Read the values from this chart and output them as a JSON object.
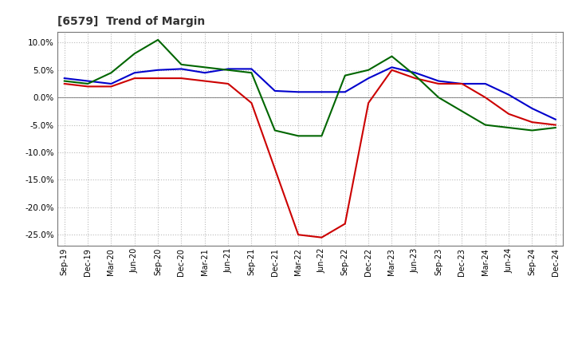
{
  "title": "[6579]  Trend of Margin",
  "x_labels": [
    "Sep-19",
    "Dec-19",
    "Mar-20",
    "Jun-20",
    "Sep-20",
    "Dec-20",
    "Mar-21",
    "Jun-21",
    "Sep-21",
    "Dec-21",
    "Mar-22",
    "Jun-22",
    "Sep-22",
    "Dec-22",
    "Mar-23",
    "Jun-23",
    "Sep-23",
    "Dec-23",
    "Mar-24",
    "Jun-24",
    "Sep-24",
    "Dec-24"
  ],
  "ordinary_income": [
    3.5,
    3.0,
    2.5,
    4.5,
    5.0,
    5.2,
    4.5,
    5.2,
    5.2,
    1.2,
    1.0,
    1.0,
    1.0,
    3.5,
    5.5,
    4.5,
    3.0,
    2.5,
    2.5,
    0.5,
    -2.0,
    -4.0
  ],
  "net_income": [
    2.5,
    2.0,
    2.0,
    3.5,
    3.5,
    3.5,
    3.0,
    2.5,
    -1.0,
    -13.0,
    -25.0,
    -25.5,
    -23.0,
    -1.0,
    5.0,
    3.5,
    2.5,
    2.5,
    0.0,
    -3.0,
    -4.5,
    -5.0
  ],
  "operating_cashflow": [
    3.0,
    2.5,
    4.5,
    8.0,
    10.5,
    6.0,
    5.5,
    5.0,
    4.5,
    -6.0,
    -7.0,
    -7.0,
    4.0,
    5.0,
    7.5,
    4.0,
    0.0,
    -2.5,
    -5.0,
    -5.5,
    -6.0,
    -5.5
  ],
  "ylim": [
    -27,
    12
  ],
  "yticks": [
    -25.0,
    -20.0,
    -15.0,
    -10.0,
    -5.0,
    0.0,
    5.0,
    10.0
  ],
  "line_colors": {
    "ordinary_income": "#0000CC",
    "net_income": "#CC0000",
    "operating_cashflow": "#006600"
  },
  "background_color": "#FFFFFF",
  "grid_color": "#BBBBBB"
}
